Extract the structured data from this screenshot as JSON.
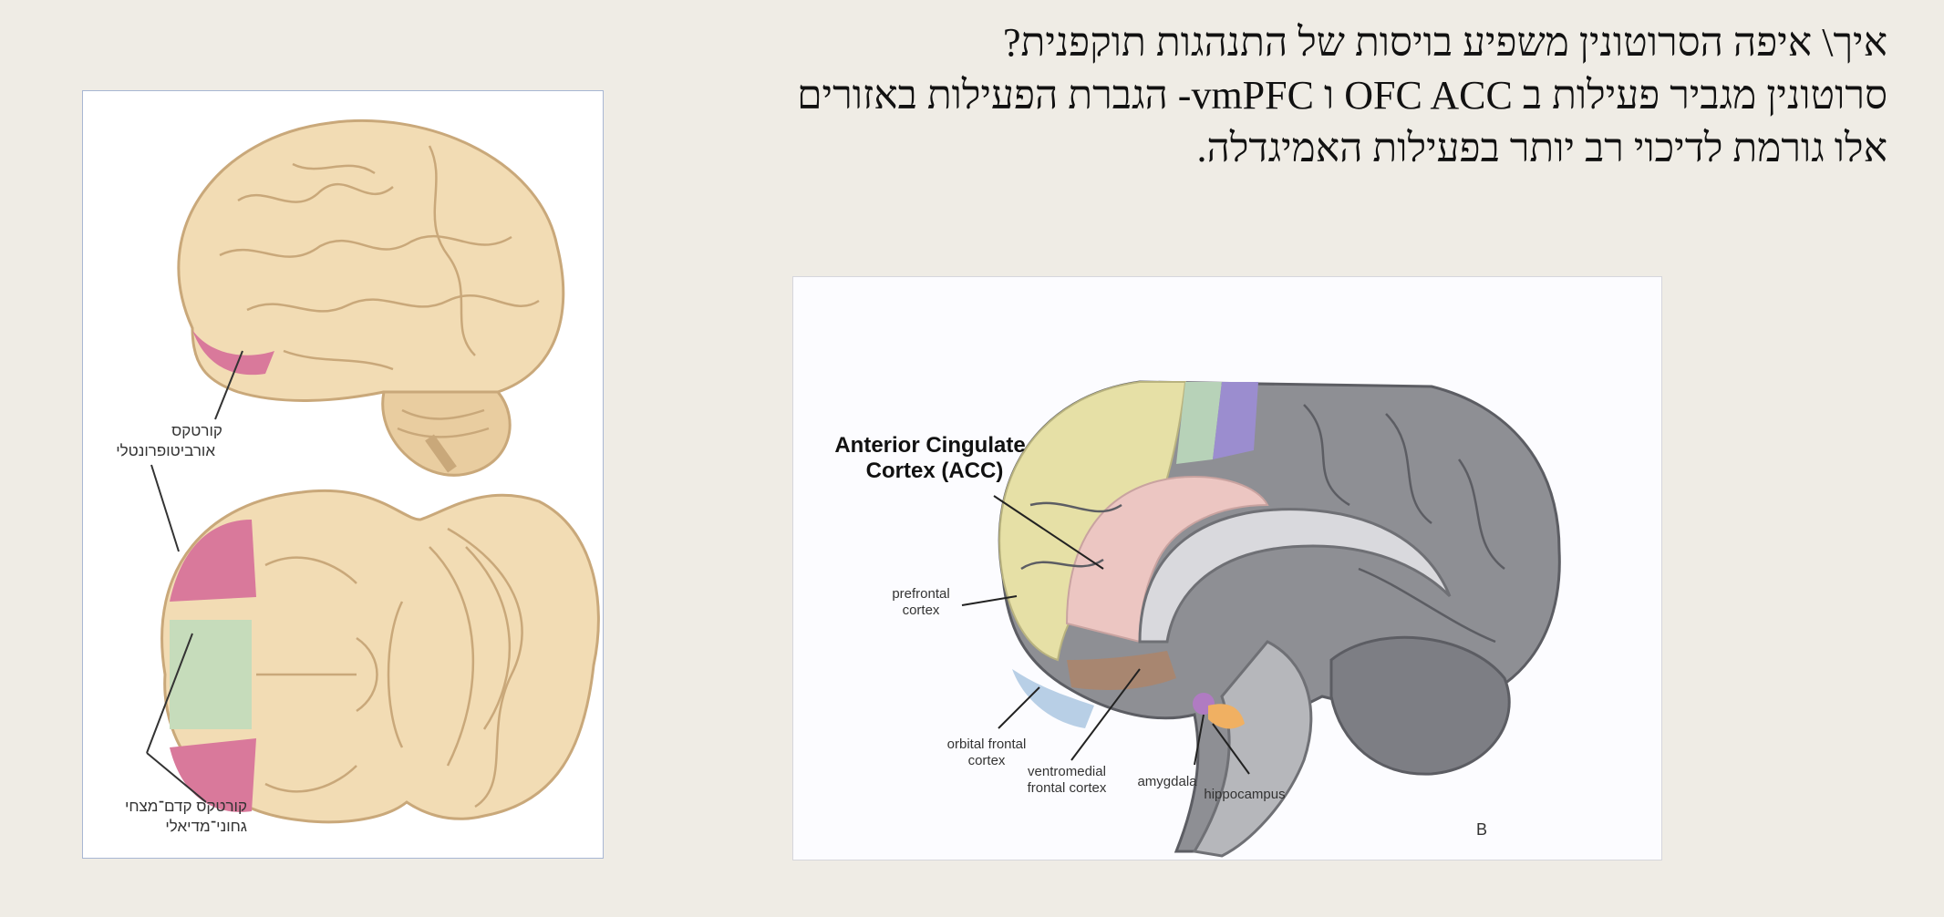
{
  "header": {
    "line1": "איך\\ איפה  הסרוטונין משפיע בויסות של התנהגות תוקפנית?",
    "line2": "סרוטונין מגביר פעילות ב OFC ACC ו vmPFC- הגברת הפעילות באזורים",
    "line3": "אלו גורמת לדיכוי רב יותר בפעילות האמיגדלה."
  },
  "left_figure": {
    "label_orbitofrontal": [
      "קורטקס",
      "אורביטופרונטלי"
    ],
    "label_ventromedial": [
      "קורטקס קדם־מצחי",
      "גחוני־מדיאלי"
    ],
    "colors": {
      "brain": "#f2dcb4",
      "pink": "#d9799b",
      "green": "#c6dcbb"
    }
  },
  "right_figure": {
    "title": [
      "Anterior Cingulate",
      "Cortex (ACC)"
    ],
    "label_prefrontal": [
      "prefrontal",
      "cortex"
    ],
    "label_orbital": [
      "orbital frontal",
      "cortex"
    ],
    "label_ventromedial": [
      "ventromedial",
      "frontal cortex"
    ],
    "label_amygdala": "amygdala",
    "label_hippocampus": "hippocampus",
    "panel_letter": "B",
    "colors": {
      "yellow": "#e6e0a6",
      "pink": "#ecc6c2",
      "blue": "#b8cfe6",
      "brown": "#a88670",
      "gray": "#8e8f94",
      "purple": "#9b8dcf",
      "orange": "#f0b062"
    }
  }
}
